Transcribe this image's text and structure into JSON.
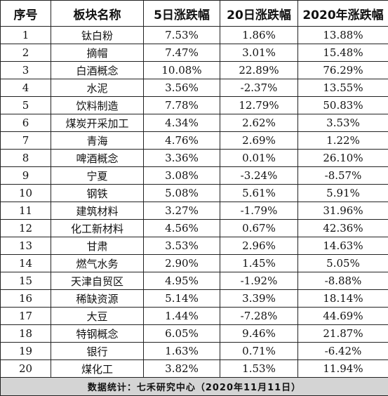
{
  "headers": [
    "序号",
    "板块名称",
    "5日涨跌幅",
    "20日涨跌幅",
    "2020年涨跌幅"
  ],
  "rows": [
    [
      "1",
      "钛白粉",
      "7.53%",
      "1.86%",
      "13.88%"
    ],
    [
      "2",
      "摘帽",
      "7.47%",
      "3.01%",
      "15.48%"
    ],
    [
      "3",
      "白酒概念",
      "10.08%",
      "22.89%",
      "76.29%"
    ],
    [
      "4",
      "水泥",
      "3.56%",
      "-2.37%",
      "13.55%"
    ],
    [
      "5",
      "饮料制造",
      "7.78%",
      "12.79%",
      "50.83%"
    ],
    [
      "6",
      "煤炭开采加工",
      "4.34%",
      "2.62%",
      "3.53%"
    ],
    [
      "7",
      "青海",
      "4.76%",
      "2.69%",
      "1.22%"
    ],
    [
      "8",
      "啤酒概念",
      "3.36%",
      "0.01%",
      "26.10%"
    ],
    [
      "9",
      "宁夏",
      "3.08%",
      "-3.24%",
      "-8.57%"
    ],
    [
      "10",
      "钢铁",
      "5.08%",
      "5.61%",
      "5.91%"
    ],
    [
      "11",
      "建筑材料",
      "3.27%",
      "-1.79%",
      "31.96%"
    ],
    [
      "12",
      "化工新材料",
      "4.56%",
      "0.67%",
      "42.36%"
    ],
    [
      "13",
      "甘肃",
      "3.53%",
      "2.96%",
      "14.63%"
    ],
    [
      "14",
      "燃气水务",
      "2.90%",
      "1.45%",
      "5.05%"
    ],
    [
      "15",
      "天津自贸区",
      "4.95%",
      "-1.92%",
      "-8.88%"
    ],
    [
      "16",
      "稀缺资源",
      "5.14%",
      "3.39%",
      "18.14%"
    ],
    [
      "17",
      "大豆",
      "1.44%",
      "-7.28%",
      "44.69%"
    ],
    [
      "18",
      "特钢概念",
      "6.05%",
      "9.46%",
      "21.87%"
    ],
    [
      "19",
      "银行",
      "1.63%",
      "0.71%",
      "-6.42%"
    ],
    [
      "20",
      "煤化工",
      "3.82%",
      "1.53%",
      "11.94%"
    ]
  ],
  "footer": "数据统计：七禾研究中心（2020年11月11日）"
}
